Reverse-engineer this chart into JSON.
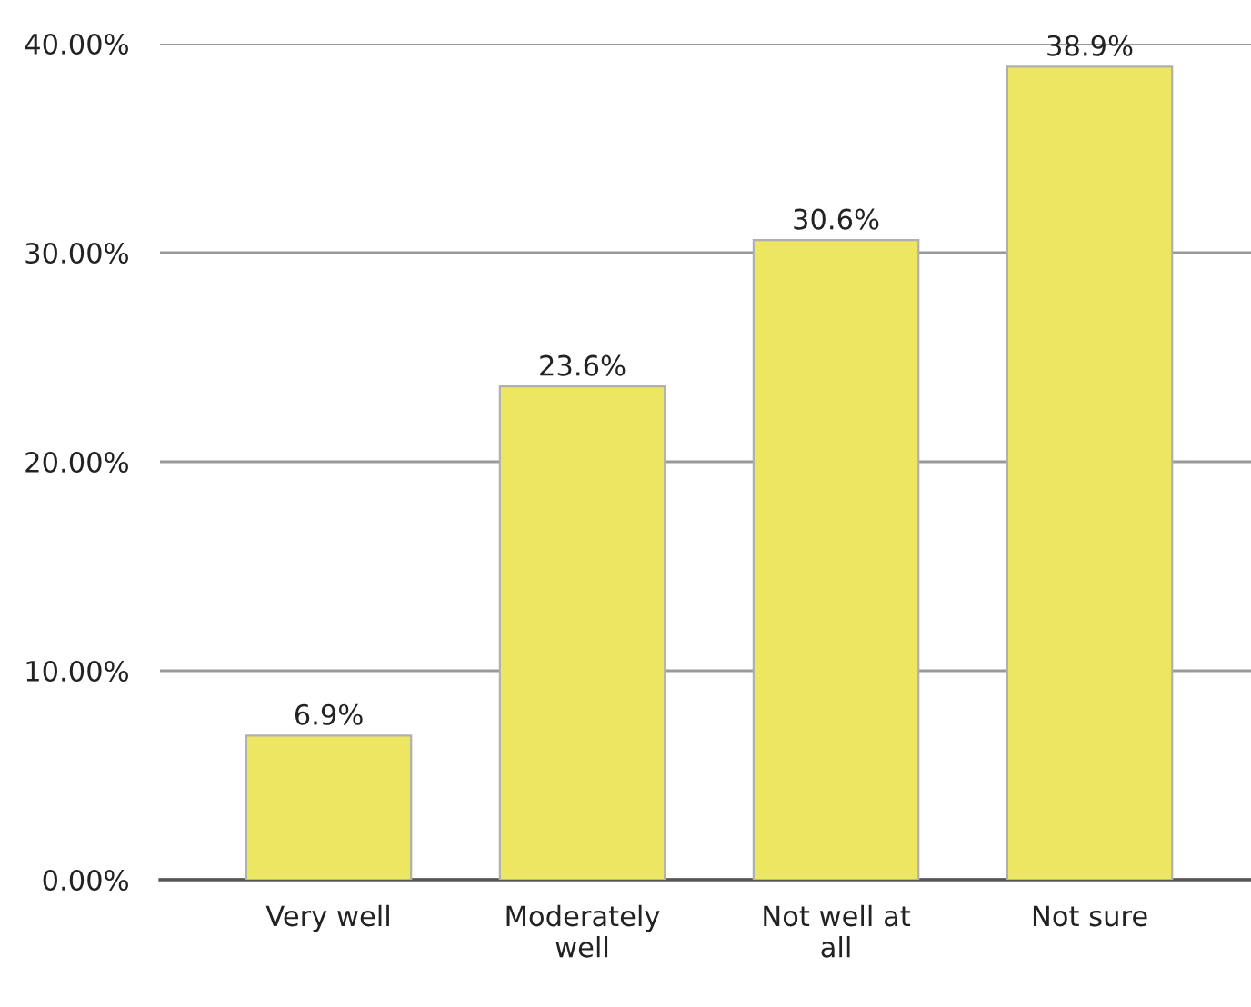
{
  "chart_data": {
    "type": "bar",
    "categories": [
      "Very well",
      "Moderately well",
      "Not well at all",
      "Not sure"
    ],
    "values": [
      6.9,
      23.6,
      30.6,
      38.9
    ],
    "value_labels": [
      "6.9%",
      "23.6%",
      "30.6%",
      "38.9%"
    ],
    "color": "#ede660",
    "ylim": [
      0,
      40
    ],
    "yticks": [
      {
        "value": 0,
        "label": "0.00%"
      },
      {
        "value": 10,
        "label": "10.00%"
      },
      {
        "value": 20,
        "label": "20.00%"
      },
      {
        "value": 30,
        "label": "30.00%"
      },
      {
        "value": 40,
        "label": "40.00%"
      }
    ],
    "grid": "y",
    "legend": false
  }
}
